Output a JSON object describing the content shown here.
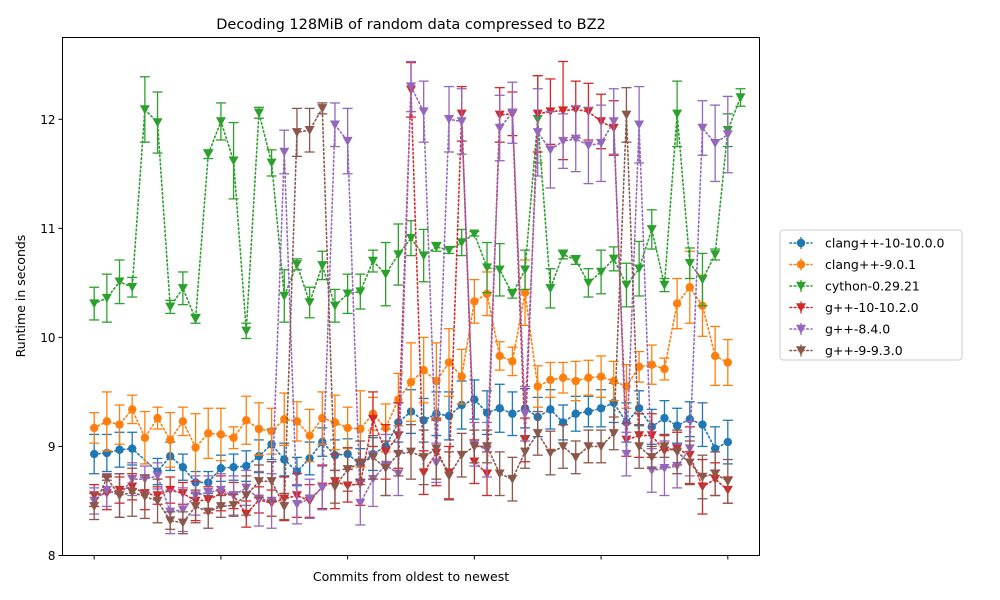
{
  "chart_data": {
    "type": "line",
    "title": "Decoding 128MiB of random data compressed to BZ2",
    "xlabel": "Commits from oldest to newest",
    "ylabel": "Runtime in seconds",
    "ylim": [
      8.0,
      12.75
    ],
    "xlim": [
      -5,
      105
    ],
    "yticks": [
      8,
      9,
      10,
      11,
      12
    ],
    "xticks": [
      0,
      20,
      40,
      60,
      80,
      100
    ],
    "grid": false,
    "legend_position": "outside-right",
    "error_bars": true,
    "series": [
      {
        "name": "clang++-10-10.0.0",
        "color": "#1f77b4",
        "marker": "circle",
        "linestyle": "dotted",
        "x": [
          0,
          2,
          4,
          6,
          10,
          12,
          14,
          16,
          18,
          20,
          22,
          24,
          26,
          28,
          30,
          32,
          34,
          36,
          38,
          40,
          42,
          44,
          46,
          48,
          50,
          52,
          54,
          56,
          58,
          60,
          62,
          64,
          66,
          68,
          70,
          72,
          74,
          76,
          78,
          80,
          82,
          84,
          86,
          88,
          90,
          92,
          94,
          96,
          98,
          100
        ],
        "y": [
          8.93,
          8.94,
          8.97,
          8.98,
          8.77,
          8.91,
          8.81,
          8.67,
          8.67,
          8.8,
          8.81,
          8.82,
          8.91,
          9.02,
          8.88,
          8.77,
          8.89,
          9.04,
          8.92,
          8.93,
          8.84,
          8.93,
          9.0,
          9.22,
          9.32,
          9.24,
          9.3,
          9.28,
          9.38,
          9.43,
          9.31,
          9.35,
          9.3,
          9.35,
          9.27,
          9.34,
          9.22,
          9.3,
          9.32,
          9.35,
          9.4,
          9.22,
          9.35,
          9.18,
          9.26,
          9.19,
          9.25,
          9.2,
          8.98,
          9.04
        ],
        "err": [
          0.18,
          0.17,
          0.16,
          0.15,
          0.12,
          0.13,
          0.12,
          0.1,
          0.1,
          0.12,
          0.12,
          0.14,
          0.15,
          0.14,
          0.15,
          0.13,
          0.15,
          0.13,
          0.14,
          0.14,
          0.14,
          0.15,
          0.16,
          0.18,
          0.2,
          0.2,
          0.2,
          0.22,
          0.22,
          0.18,
          0.2,
          0.22,
          0.2,
          0.18,
          0.18,
          0.18,
          0.16,
          0.16,
          0.14,
          0.17,
          0.18,
          0.18,
          0.16,
          0.16,
          0.16,
          0.16,
          0.16,
          0.2,
          0.2,
          0.2
        ]
      },
      {
        "name": "clang++-9.0.1",
        "color": "#ff7f0e",
        "marker": "circle",
        "linestyle": "dotted",
        "x": [
          0,
          2,
          4,
          6,
          8,
          10,
          12,
          14,
          16,
          18,
          20,
          22,
          24,
          26,
          28,
          30,
          32,
          34,
          36,
          38,
          40,
          42,
          44,
          46,
          48,
          50,
          52,
          54,
          56,
          58,
          60,
          62,
          64,
          66,
          68,
          70,
          72,
          74,
          76,
          78,
          80,
          82,
          84,
          86,
          88,
          90,
          92,
          94,
          96,
          98,
          100
        ],
        "y": [
          9.17,
          9.23,
          9.2,
          9.34,
          9.08,
          9.26,
          9.06,
          9.23,
          8.99,
          9.12,
          9.11,
          9.08,
          9.24,
          9.16,
          9.14,
          9.25,
          9.23,
          9.1,
          9.26,
          9.22,
          9.17,
          9.16,
          9.3,
          9.17,
          9.43,
          9.59,
          9.7,
          9.6,
          9.77,
          9.64,
          10.33,
          10.4,
          9.83,
          9.78,
          10.41,
          9.55,
          9.61,
          9.63,
          9.6,
          9.63,
          9.64,
          9.6,
          9.55,
          9.73,
          9.75,
          9.71,
          10.31,
          10.46,
          10.29,
          9.83,
          9.77
        ],
        "err": [
          0.14,
          0.27,
          0.18,
          0.13,
          0.24,
          0.1,
          0.25,
          0.13,
          0.31,
          0.23,
          0.24,
          0.1,
          0.22,
          0.24,
          0.21,
          0.24,
          0.18,
          0.24,
          0.24,
          0.25,
          0.19,
          0.35,
          0.15,
          0.22,
          0.24,
          0.36,
          0.3,
          0.35,
          0.31,
          0.25,
          0.2,
          0.2,
          0.13,
          0.13,
          0.3,
          0.19,
          0.16,
          0.14,
          0.18,
          0.16,
          0.19,
          0.18,
          0.2,
          0.14,
          0.18,
          0.1,
          0.23,
          0.33,
          0.28,
          0.27,
          0.21
        ]
      },
      {
        "name": "cython-0.29.21",
        "color": "#2ca02c",
        "marker": "triangle-down",
        "linestyle": "dotted",
        "x": [
          0,
          2,
          4,
          6,
          8,
          10,
          12,
          14,
          16,
          18,
          20,
          22,
          24,
          26,
          28,
          30,
          32,
          34,
          36,
          38,
          40,
          42,
          44,
          46,
          48,
          50,
          52,
          54,
          56,
          58,
          60,
          62,
          64,
          66,
          68,
          70,
          72,
          74,
          76,
          78,
          80,
          82,
          84,
          86,
          88,
          90,
          92,
          94,
          96,
          98,
          100,
          102
        ],
        "y": [
          10.31,
          10.36,
          10.51,
          10.46,
          12.09,
          11.97,
          10.28,
          10.45,
          10.17,
          11.68,
          11.98,
          11.62,
          10.06,
          12.06,
          11.6,
          10.38,
          10.67,
          10.32,
          10.66,
          10.29,
          10.4,
          10.42,
          10.7,
          10.58,
          10.76,
          10.91,
          10.75,
          10.83,
          10.8,
          10.87,
          10.95,
          10.64,
          10.62,
          10.4,
          10.62,
          12.0,
          10.45,
          10.76,
          10.71,
          10.5,
          10.6,
          10.72,
          10.48,
          10.63,
          10.99,
          10.48,
          12.05,
          10.68,
          10.53,
          10.76,
          11.9,
          12.2
        ],
        "err": [
          0.15,
          0.22,
          0.2,
          0.09,
          0.3,
          0.28,
          0.06,
          0.15,
          0.04,
          0.04,
          0.17,
          0.35,
          0.07,
          0.05,
          0.12,
          0.24,
          0.05,
          0.14,
          0.13,
          0.15,
          0.18,
          0.16,
          0.1,
          0.29,
          0.28,
          0.16,
          0.24,
          0.04,
          0.03,
          0.12,
          0.02,
          0.23,
          0.24,
          0.04,
          0.18,
          0.4,
          0.18,
          0.04,
          0.04,
          0.13,
          0.2,
          0.11,
          0.2,
          0.25,
          0.18,
          0.06,
          0.3,
          0.14,
          0.24,
          0.05,
          0.15,
          0.08
        ]
      },
      {
        "name": "g++-10-10.2.0",
        "color": "#d62728",
        "marker": "triangle-down",
        "linestyle": "dotted",
        "x": [
          0,
          2,
          4,
          6,
          8,
          10,
          12,
          14,
          16,
          18,
          20,
          22,
          24,
          26,
          28,
          30,
          32,
          34,
          36,
          38,
          40,
          42,
          44,
          46,
          48,
          50,
          52,
          54,
          56,
          58,
          60,
          62,
          64,
          66,
          68,
          70,
          72,
          74,
          76,
          78,
          80,
          82,
          84,
          86,
          88,
          90,
          92,
          94,
          96,
          98,
          100
        ],
        "y": [
          8.55,
          8.57,
          8.6,
          8.63,
          8.57,
          8.55,
          8.6,
          8.57,
          8.5,
          8.51,
          8.57,
          8.55,
          8.38,
          8.51,
          8.48,
          8.52,
          8.55,
          8.5,
          8.63,
          8.68,
          8.64,
          8.66,
          9.25,
          8.95,
          9.1,
          12.27,
          8.76,
          8.94,
          8.76,
          12.05,
          8.86,
          8.75,
          12.04,
          12.05,
          9.06,
          12.05,
          12.07,
          12.08,
          12.09,
          12.07,
          11.98,
          11.92,
          9.06,
          9.1,
          9.1,
          8.96,
          8.98,
          8.92,
          8.63,
          8.7,
          8.6
        ],
        "err": [
          0.1,
          0.15,
          0.12,
          0.12,
          0.15,
          0.08,
          0.12,
          0.1,
          0.18,
          0.12,
          0.16,
          0.12,
          0.12,
          0.12,
          0.12,
          0.2,
          0.2,
          0.15,
          0.2,
          0.25,
          0.15,
          0.2,
          0.25,
          0.25,
          0.3,
          0.25,
          0.2,
          0.3,
          0.24,
          0.25,
          0.2,
          0.2,
          0.25,
          0.2,
          0.2,
          0.35,
          0.3,
          0.45,
          0.26,
          0.26,
          0.25,
          0.25,
          0.15,
          0.2,
          0.2,
          0.15,
          0.15,
          0.26,
          0.25,
          0.15,
          0.12
        ]
      },
      {
        "name": "g++-8.4.0",
        "color": "#9467bd",
        "marker": "triangle-down",
        "linestyle": "dotted",
        "x": [
          0,
          2,
          4,
          6,
          8,
          10,
          12,
          14,
          16,
          18,
          20,
          22,
          24,
          26,
          28,
          30,
          32,
          34,
          36,
          38,
          40,
          42,
          44,
          46,
          48,
          50,
          52,
          54,
          56,
          58,
          60,
          62,
          64,
          66,
          68,
          70,
          72,
          74,
          76,
          78,
          80,
          82,
          84,
          86,
          88,
          90,
          92,
          94,
          96,
          98,
          100
        ],
        "y": [
          8.5,
          8.6,
          8.55,
          8.7,
          8.7,
          8.73,
          8.4,
          8.42,
          8.55,
          8.58,
          8.6,
          8.55,
          8.62,
          8.52,
          8.5,
          11.7,
          8.47,
          8.52,
          8.62,
          11.95,
          11.8,
          8.48,
          8.7,
          8.83,
          8.75,
          12.3,
          12.07,
          8.85,
          12.0,
          11.98,
          9.02,
          8.97,
          11.92,
          12.06,
          9.3,
          11.88,
          11.72,
          11.8,
          11.82,
          11.76,
          11.78,
          11.98,
          8.93,
          11.95,
          8.78,
          8.8,
          8.82,
          8.98,
          11.92,
          11.78,
          11.86
        ],
        "err": [
          0.12,
          0.15,
          0.2,
          0.15,
          0.12,
          0.12,
          0.2,
          0.2,
          0.18,
          0.15,
          0.15,
          0.18,
          0.16,
          0.25,
          0.25,
          0.2,
          0.18,
          0.18,
          0.2,
          0.2,
          0.3,
          0.2,
          0.25,
          0.28,
          0.2,
          0.23,
          0.28,
          0.18,
          0.3,
          0.3,
          0.2,
          0.25,
          0.3,
          0.28,
          0.25,
          0.4,
          0.35,
          0.25,
          0.3,
          0.35,
          0.35,
          0.3,
          0.2,
          0.35,
          0.2,
          0.25,
          0.2,
          0.25,
          0.25,
          0.35,
          0.35
        ]
      },
      {
        "name": "g++-9-9.3.0",
        "color": "#8c564b",
        "marker": "triangle-down",
        "linestyle": "dotted",
        "x": [
          0,
          2,
          4,
          6,
          8,
          10,
          12,
          14,
          16,
          18,
          20,
          22,
          24,
          26,
          28,
          30,
          32,
          34,
          36,
          38,
          40,
          42,
          44,
          46,
          48,
          50,
          52,
          54,
          56,
          58,
          60,
          62,
          64,
          66,
          68,
          70,
          72,
          74,
          76,
          78,
          80,
          82,
          84,
          86,
          88,
          90,
          92,
          94,
          96,
          98,
          100
        ],
        "y": [
          8.45,
          8.71,
          8.55,
          8.58,
          8.54,
          8.5,
          8.32,
          8.3,
          8.45,
          8.4,
          8.45,
          8.46,
          8.55,
          8.68,
          8.68,
          8.45,
          11.88,
          11.9,
          12.1,
          8.63,
          8.79,
          8.85,
          8.9,
          8.8,
          8.93,
          8.95,
          8.9,
          8.98,
          8.73,
          8.92,
          9.0,
          9.0,
          8.75,
          8.7,
          8.95,
          9.12,
          8.94,
          9.0,
          8.9,
          9.0,
          9.0,
          9.12,
          12.04,
          9.0,
          8.9,
          9.0,
          8.95,
          8.85,
          8.72,
          8.75,
          8.68
        ],
        "err": [
          0.12,
          0.02,
          0.2,
          0.22,
          0.2,
          0.2,
          0.08,
          0.1,
          0.15,
          0.15,
          0.1,
          0.1,
          0.18,
          0.15,
          0.18,
          0.12,
          0.22,
          0.2,
          0.05,
          0.15,
          0.2,
          0.2,
          0.2,
          0.25,
          0.2,
          0.25,
          0.25,
          0.28,
          0.22,
          0.2,
          0.15,
          0.15,
          0.2,
          0.2,
          0.15,
          0.2,
          0.2,
          0.2,
          0.15,
          0.15,
          0.15,
          0.15,
          0.25,
          0.2,
          0.1,
          0.1,
          0.2,
          0.2,
          0.2,
          0.2,
          0.2
        ]
      }
    ]
  }
}
